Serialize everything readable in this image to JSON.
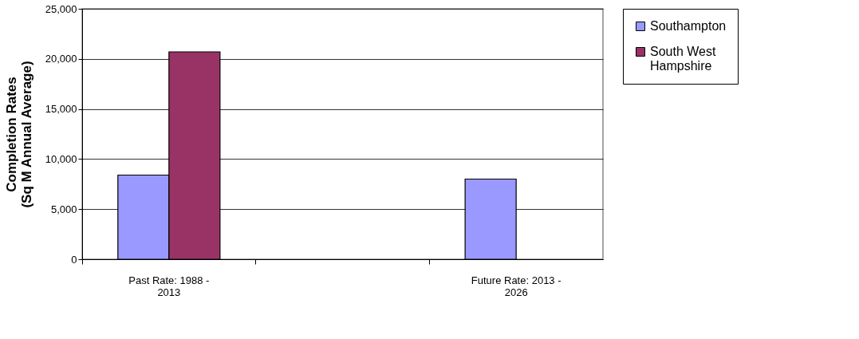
{
  "chart_data": {
    "type": "bar",
    "ylabel": "Completion Rates\n(Sq M Annual Average)",
    "categories": [
      "Past Rate:  1988 -\n2013",
      null,
      "Future Rate:  2013 -\n2026"
    ],
    "series": [
      {
        "name": "Southampton",
        "color": "#9999ff",
        "values": [
          8400,
          null,
          8000
        ]
      },
      {
        "name": "South West\nHampshire",
        "color": "#993366",
        "values": [
          20700,
          null,
          null
        ]
      }
    ],
    "ylim": [
      0,
      25000
    ],
    "yticks": [
      0,
      {
        "value": 5000,
        "label": "5,000"
      },
      {
        "value": 10000,
        "label": "10,000"
      },
      {
        "value": 15000,
        "label": "15,000"
      },
      {
        "value": 20000,
        "label": "20,000"
      },
      {
        "value": 25000,
        "label": "25,000"
      }
    ],
    "grid": "y",
    "legend": "right"
  }
}
